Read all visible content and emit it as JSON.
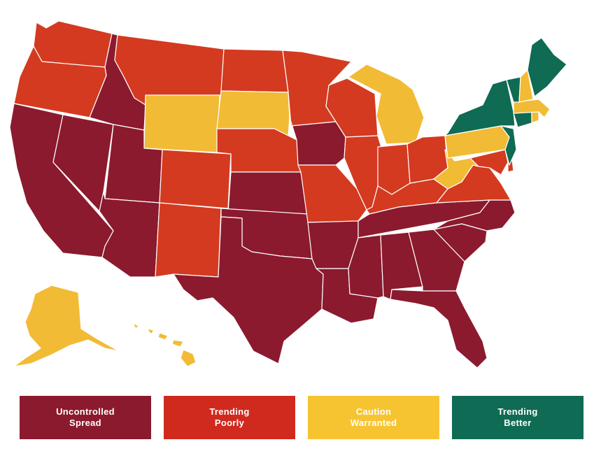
{
  "colors": {
    "uncontrolled": "#8b1a2e",
    "poorly": "#d43a20",
    "caution": "#f2bb35",
    "better": "#0f6b53"
  },
  "legend": [
    {
      "key": "uncontrolled",
      "line1": "Uncontrolled",
      "line2": "Spread",
      "color": "#8b1a2e"
    },
    {
      "key": "poorly",
      "line1": "Trending",
      "line2": "Poorly",
      "color": "#d02a1e"
    },
    {
      "key": "caution",
      "line1": "Caution",
      "line2": "Warranted",
      "color": "#f7c431"
    },
    {
      "key": "better",
      "line1": "Trending",
      "line2": "Better",
      "color": "#0f6b53"
    }
  ],
  "states": {
    "WA": "poorly",
    "OR": "poorly",
    "CA": "uncontrolled",
    "NV": "uncontrolled",
    "ID": "uncontrolled",
    "MT": "poorly",
    "WY": "caution",
    "UT": "uncontrolled",
    "AZ": "uncontrolled",
    "CO": "poorly",
    "NM": "poorly",
    "ND": "poorly",
    "SD": "caution",
    "NE": "poorly",
    "KS": "uncontrolled",
    "OK": "uncontrolled",
    "TX": "uncontrolled",
    "MN": "poorly",
    "IA": "uncontrolled",
    "MO": "poorly",
    "AR": "uncontrolled",
    "LA": "uncontrolled",
    "WI": "poorly",
    "IL": "poorly",
    "MI": "caution",
    "IN": "poorly",
    "OH": "poorly",
    "KY": "poorly",
    "TN": "uncontrolled",
    "MS": "uncontrolled",
    "AL": "uncontrolled",
    "GA": "uncontrolled",
    "FL": "uncontrolled",
    "SC": "uncontrolled",
    "NC": "uncontrolled",
    "VA": "poorly",
    "WV": "caution",
    "PA": "caution",
    "NY": "better",
    "NJ": "better",
    "DE": "poorly",
    "MD": "poorly",
    "CT": "better",
    "RI": "caution",
    "MA": "caution",
    "VT": "better",
    "NH": "caution",
    "ME": "better",
    "AK": "caution",
    "HI": "caution"
  }
}
